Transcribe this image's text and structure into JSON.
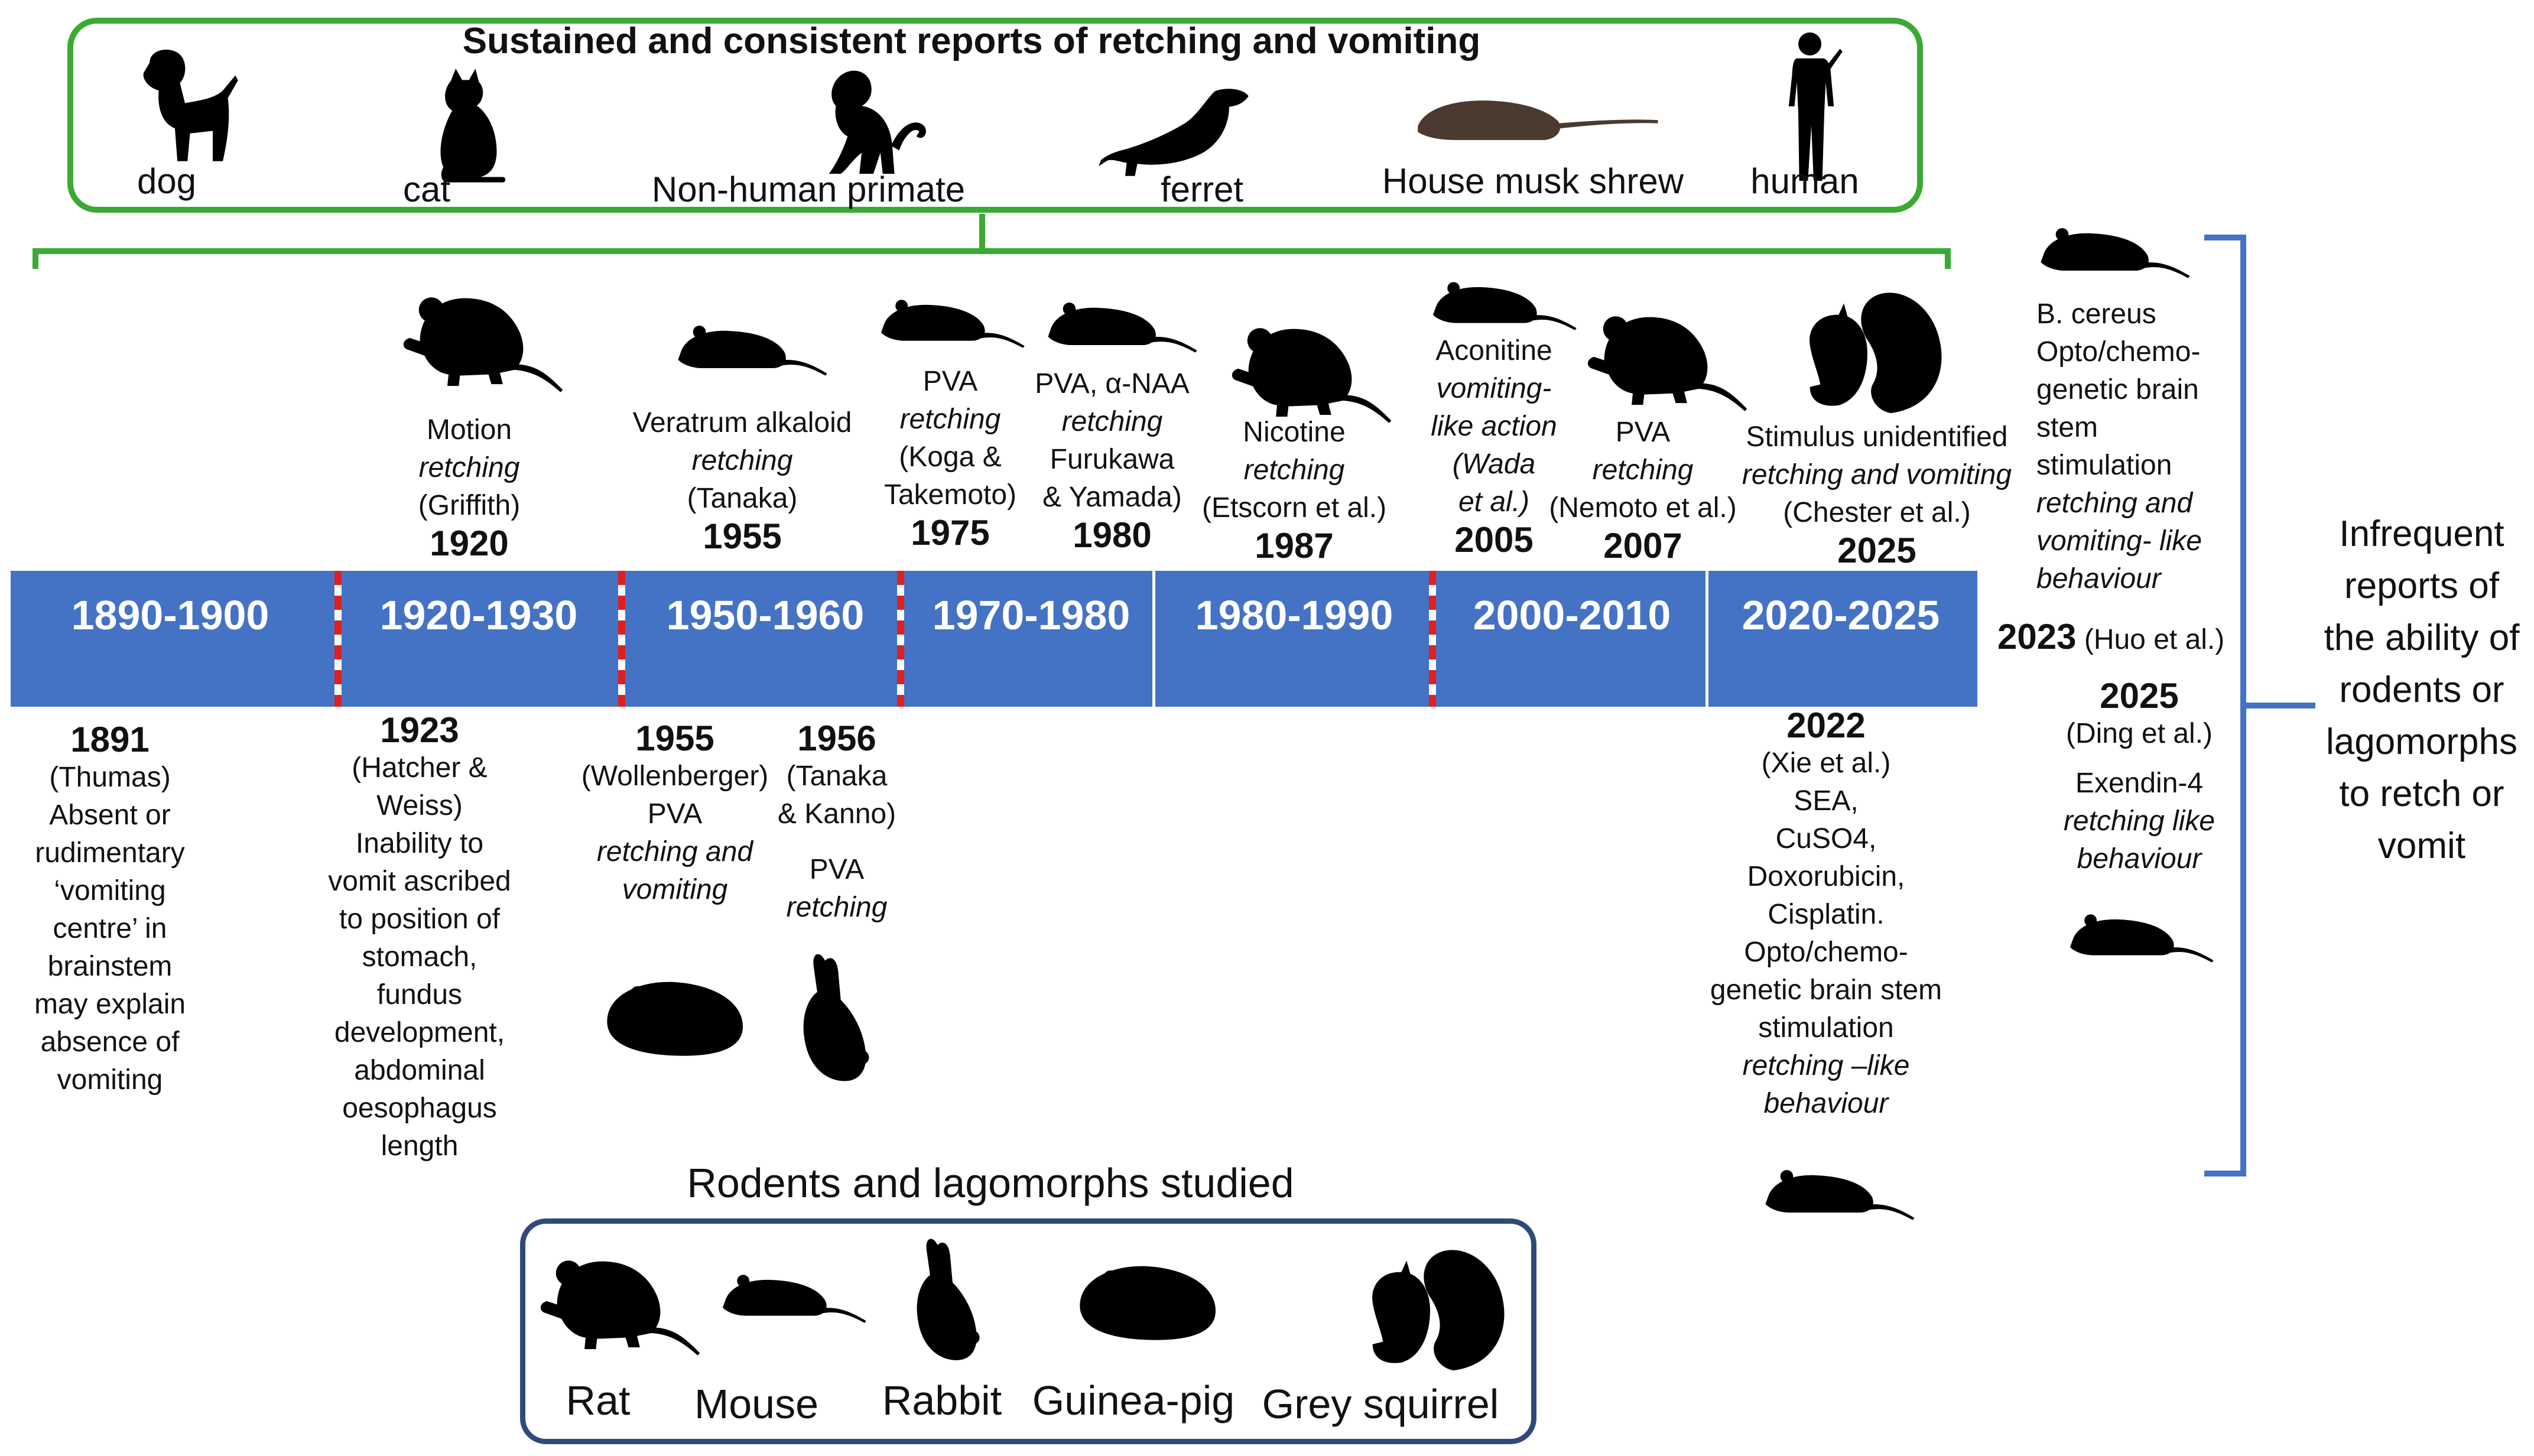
{
  "top_panel": {
    "title": "Sustained and consistent reports of retching and vomiting",
    "animals": [
      "dog",
      "cat",
      "Non-human primate",
      "ferret",
      "House musk shrew",
      "human"
    ]
  },
  "decades": [
    "1890-1900",
    "1920-1930",
    "1950-1960",
    "1970-1980",
    "1980-1990",
    "2000-2010",
    "2020-2025"
  ],
  "above_events": [
    {
      "lines": [
        "Motion"
      ],
      "italic": [
        "retching"
      ],
      "cite": [
        "(Griffith)"
      ],
      "year": "1920"
    },
    {
      "lines": [
        "Veratrum  alkaloid"
      ],
      "italic": [
        "retching"
      ],
      "cite": [
        "(Tanaka)"
      ],
      "year": "1955"
    },
    {
      "lines": [
        "PVA"
      ],
      "italic": [
        "retching"
      ],
      "cite": [
        "(Koga &",
        "Takemoto)"
      ],
      "year": "1975"
    },
    {
      "lines": [
        "PVA, α-NAA"
      ],
      "italic": [
        "retching"
      ],
      "cite": [
        "Furukawa",
        "& Yamada)"
      ],
      "year": "1980"
    },
    {
      "lines": [
        "Nicotine"
      ],
      "italic": [
        "retching"
      ],
      "cite": [
        "(Etscorn et al.)"
      ],
      "year": "1987"
    },
    {
      "lines": [
        "Aconitine"
      ],
      "italic": [
        "vomiting-",
        "like action",
        "(Wada",
        "et al.)"
      ],
      "cite": [],
      "year": "2005"
    },
    {
      "lines": [
        "PVA"
      ],
      "italic": [
        "retching"
      ],
      "cite": [
        "(Nemoto  et al.)"
      ],
      "year": "2007"
    },
    {
      "lines": [
        "Stimulus unidentified"
      ],
      "italic": [
        "retching and vomiting"
      ],
      "cite": [
        "(Chester et al.)"
      ],
      "year": "2025"
    }
  ],
  "below_events": [
    {
      "year": "1891",
      "lines": [
        "(Thumas)",
        "Absent or",
        "rudimentary",
        "‘vomiting",
        "centre’ in",
        "brainstem",
        "may explain",
        "absence of",
        "vomiting"
      ]
    },
    {
      "year": "1923",
      "lines": [
        "(Hatcher &",
        "Weiss)",
        "Inability to",
        "vomit ascribed",
        "to position of",
        "stomach,",
        "fundus",
        "development,",
        "abdominal",
        "oesophagus",
        "length"
      ]
    },
    {
      "year": "1955",
      "lines": [
        "(Wollenberger)",
        "PVA"
      ],
      "italic": [
        "retching and",
        "vomiting"
      ]
    },
    {
      "year": "1956",
      "lines": [
        "(Tanaka",
        "& Kanno)",
        "PVA"
      ],
      "italic": [
        "retching"
      ]
    },
    {
      "year": "2022",
      "lines": [
        "(Xie et al.)",
        "SEA,",
        "CuSO4,",
        "Doxorubicin,",
        "Cisplatin.",
        "Opto/chemo-",
        "genetic brain stem",
        "stimulation"
      ],
      "italic": [
        "retching –like",
        "behaviour"
      ]
    }
  ],
  "right_column": {
    "lines_top": [
      "B. cereus",
      "Opto/chemo-",
      "genetic brain",
      "stem",
      "stimulation"
    ],
    "italic_top": [
      "retching and",
      "vomiting- like",
      "behaviour"
    ],
    "year_2023": "2023",
    "cite_2023": "(Huo et al.)",
    "year_2025": "2025",
    "cite_2025": "(Ding et al.)",
    "lines_bottom": [
      "Exendin-4"
    ],
    "italic_bottom": [
      "retching like",
      "behaviour"
    ]
  },
  "side_note": [
    "Infrequent",
    "reports  of",
    "the ability of",
    "rodents  or",
    "lagomorphs",
    "to retch or",
    "vomit"
  ],
  "bottom_panel": {
    "title": "Rodents and lagomorphs studied",
    "animals": [
      "Rat",
      "Mouse",
      "Rabbit",
      "Guinea-pig",
      "Grey squirrel"
    ]
  },
  "colors": {
    "band": "#4472c4",
    "top_border": "#3aaa35",
    "bottom_border": "#2f4a7a",
    "brace": "#4472c4",
    "separator": "#e0201f"
  }
}
